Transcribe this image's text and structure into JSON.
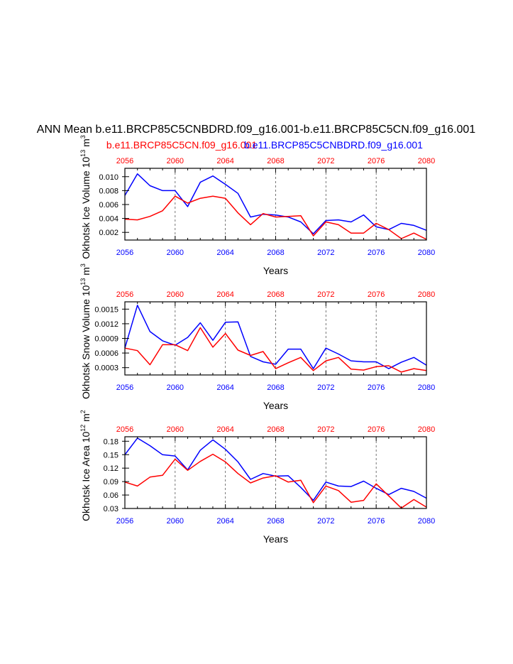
{
  "title": "ANN Mean b.e11.BRCP85C5CNBDRD.f09_g16.001-b.e11.BRCP85C5CN.f09_g16.001",
  "legend": {
    "red_label": "b.e11.BRCP85C5CN.f09_g16.001",
    "blue_label": "b.e11.BRCP85C5CNBDRD.f09_g16.001"
  },
  "colors": {
    "red": "#ff0000",
    "blue": "#0000ff",
    "axis": "#000000",
    "grid": "#555555"
  },
  "chart_data": [
    {
      "type": "line",
      "ylabel_main": "Okhotsk Ice Volume 10",
      "ylabel_exp": "13",
      "ylabel_unit": "m",
      "ylabel_unit_exp": "3",
      "xlabel": "Years",
      "xlim": [
        2056,
        2080
      ],
      "ylim": [
        0.0009,
        0.0112
      ],
      "x_ticks": [
        "2056",
        "2060",
        "2064",
        "2068",
        "2072",
        "2076",
        "2080"
      ],
      "y_ticks": [
        "0.002",
        "0.004",
        "0.006",
        "0.008",
        "0.010"
      ],
      "y_tick_values": [
        0.002,
        0.004,
        0.006,
        0.008,
        0.01
      ],
      "x": [
        2056,
        2057,
        2058,
        2059,
        2060,
        2061,
        2062,
        2063,
        2064,
        2065,
        2066,
        2067,
        2068,
        2069,
        2070,
        2071,
        2072,
        2073,
        2074,
        2075,
        2076,
        2077,
        2078,
        2079,
        2080
      ],
      "series": [
        {
          "name": "b.e11.BRCP85C5CNBDRD.f09_g16.001",
          "color": "blue",
          "values": [
            0.0073,
            0.0104,
            0.0087,
            0.008,
            0.008,
            0.0057,
            0.0092,
            0.0101,
            0.0089,
            0.0076,
            0.0042,
            0.0046,
            0.0045,
            0.0042,
            0.0035,
            0.0018,
            0.0037,
            0.0038,
            0.0035,
            0.0045,
            0.0028,
            0.0024,
            0.0033,
            0.003,
            0.0023
          ]
        },
        {
          "name": "b.e11.BRCP85C5CN.f09_g16.001",
          "color": "red",
          "values": [
            0.0039,
            0.0038,
            0.0043,
            0.0051,
            0.0072,
            0.0062,
            0.0069,
            0.0072,
            0.0069,
            0.0048,
            0.0031,
            0.0047,
            0.0042,
            0.0043,
            0.0044,
            0.0015,
            0.0035,
            0.0031,
            0.0019,
            0.0019,
            0.0033,
            0.0024,
            0.0011,
            0.0019,
            0.001
          ]
        }
      ]
    },
    {
      "type": "line",
      "ylabel_main": "Okhotsk Snow Volume 10",
      "ylabel_exp": "13",
      "ylabel_unit": "m",
      "ylabel_unit_exp": "3",
      "xlabel": "Years",
      "xlim": [
        2056,
        2080
      ],
      "ylim": [
        0.00015,
        0.00165
      ],
      "x_ticks": [
        "2056",
        "2060",
        "2064",
        "2068",
        "2072",
        "2076",
        "2080"
      ],
      "y_ticks": [
        "0.0003",
        "0.0006",
        "0.0009",
        "0.0012",
        "0.0015"
      ],
      "y_tick_values": [
        0.0003,
        0.0006,
        0.0009,
        0.0012,
        0.0015
      ],
      "x": [
        2056,
        2057,
        2058,
        2059,
        2060,
        2061,
        2062,
        2063,
        2064,
        2065,
        2066,
        2067,
        2068,
        2069,
        2070,
        2071,
        2072,
        2073,
        2074,
        2075,
        2076,
        2077,
        2078,
        2079,
        2080
      ],
      "series": [
        {
          "name": "b.e11.BRCP85C5CNBDRD.f09_g16.001",
          "color": "blue",
          "values": [
            0.0007,
            0.00158,
            0.00104,
            0.00085,
            0.00076,
            0.00092,
            0.00122,
            0.00086,
            0.00123,
            0.00124,
            0.00053,
            0.00042,
            0.00037,
            0.00068,
            0.00068,
            0.00028,
            0.0007,
            0.00058,
            0.00044,
            0.00042,
            0.00042,
            0.00028,
            0.00041,
            0.00051,
            0.00035
          ]
        },
        {
          "name": "b.e11.BRCP85C5CN.f09_g16.001",
          "color": "red",
          "values": [
            0.0007,
            0.00065,
            0.00036,
            0.00077,
            0.00077,
            0.00065,
            0.00112,
            0.00072,
            0.001,
            0.00066,
            0.00055,
            0.00063,
            0.00028,
            0.0004,
            0.00051,
            0.00024,
            0.00044,
            0.00051,
            0.00027,
            0.00025,
            0.00032,
            0.00034,
            0.00021,
            0.00028,
            0.00024
          ]
        }
      ]
    },
    {
      "type": "line",
      "ylabel_main": "Okhotsk Ice Area 10",
      "ylabel_exp": "12",
      "ylabel_unit": "m",
      "ylabel_unit_exp": "2",
      "xlabel": "Years",
      "xlim": [
        2056,
        2080
      ],
      "ylim": [
        0.03,
        0.19
      ],
      "x_ticks": [
        "2056",
        "2060",
        "2064",
        "2068",
        "2072",
        "2076",
        "2080"
      ],
      "y_ticks": [
        "0.03",
        "0.06",
        "0.09",
        "0.12",
        "0.15",
        "0.18"
      ],
      "y_tick_values": [
        0.03,
        0.06,
        0.09,
        0.12,
        0.15,
        0.18
      ],
      "x": [
        2056,
        2057,
        2058,
        2059,
        2060,
        2061,
        2062,
        2063,
        2064,
        2065,
        2066,
        2067,
        2068,
        2069,
        2070,
        2071,
        2072,
        2073,
        2074,
        2075,
        2076,
        2077,
        2078,
        2079,
        2080
      ],
      "series": [
        {
          "name": "b.e11.BRCP85C5CNBDRD.f09_g16.001",
          "color": "blue",
          "values": [
            0.15,
            0.187,
            0.17,
            0.15,
            0.147,
            0.116,
            0.16,
            0.183,
            0.162,
            0.134,
            0.095,
            0.108,
            0.102,
            0.103,
            0.077,
            0.048,
            0.089,
            0.08,
            0.079,
            0.091,
            0.075,
            0.061,
            0.075,
            0.068,
            0.053
          ]
        },
        {
          "name": "b.e11.BRCP85C5CN.f09_g16.001",
          "color": "red",
          "values": [
            0.089,
            0.08,
            0.1,
            0.104,
            0.14,
            0.115,
            0.135,
            0.151,
            0.134,
            0.108,
            0.087,
            0.098,
            0.103,
            0.089,
            0.093,
            0.043,
            0.08,
            0.07,
            0.044,
            0.048,
            0.085,
            0.058,
            0.031,
            0.05,
            0.033
          ]
        }
      ]
    }
  ]
}
